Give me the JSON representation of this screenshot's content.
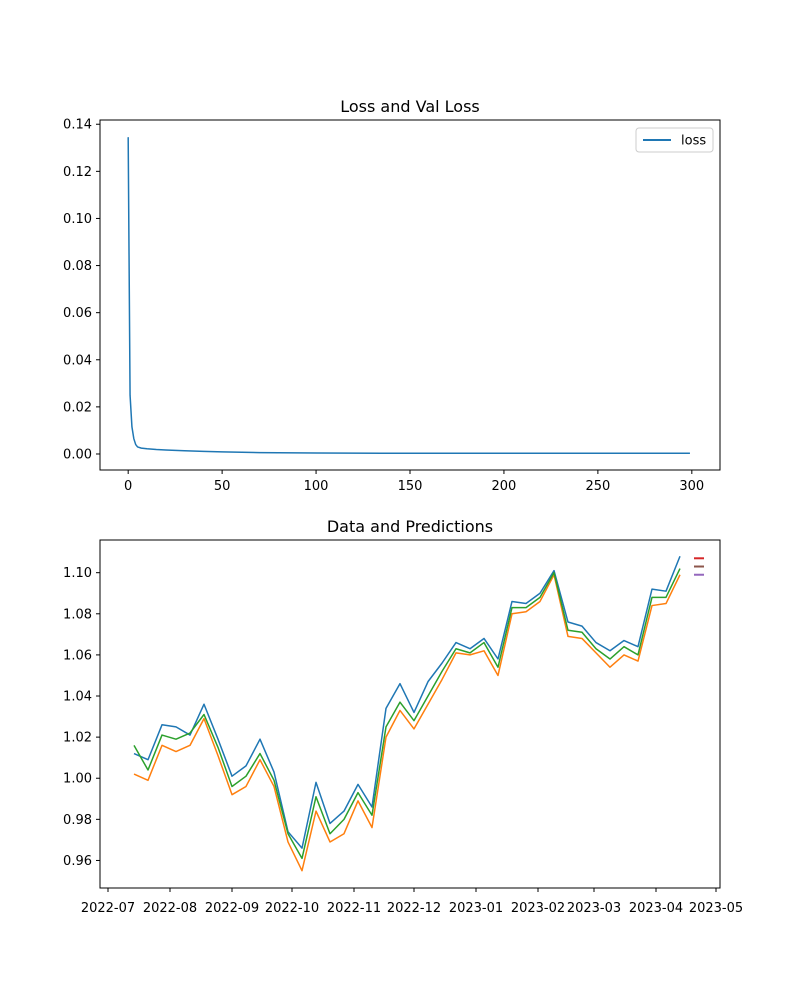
{
  "chart_data": [
    {
      "type": "line",
      "title": "Loss and Val Loss",
      "xlabel": "",
      "ylabel": "",
      "xlim": [
        -15,
        315
      ],
      "ylim": [
        -0.0068,
        0.1418
      ],
      "xticks": [
        0,
        50,
        100,
        150,
        200,
        250,
        300
      ],
      "xtick_labels": [
        "0",
        "50",
        "100",
        "150",
        "200",
        "250",
        "300"
      ],
      "yticks": [
        0.0,
        0.02,
        0.04,
        0.06,
        0.08,
        0.1,
        0.12,
        0.14
      ],
      "ytick_labels": [
        "0.00",
        "0.02",
        "0.04",
        "0.06",
        "0.08",
        "0.10",
        "0.12",
        "0.14"
      ],
      "grid": false,
      "legend": "upper right",
      "series": [
        {
          "name": "loss",
          "color": "#1f77b4",
          "x": [
            0,
            1,
            2,
            3,
            4,
            5,
            7,
            10,
            15,
            20,
            30,
            40,
            50,
            70,
            100,
            150,
            200,
            250,
            299
          ],
          "y": [
            0.1345,
            0.025,
            0.0115,
            0.0065,
            0.004,
            0.003,
            0.0025,
            0.0022,
            0.0019,
            0.0017,
            0.0014,
            0.0011,
            0.0009,
            0.0006,
            0.0004,
            0.0003,
            0.0003,
            0.0003,
            0.0003
          ]
        }
      ]
    },
    {
      "type": "line",
      "title": "Data and Predictions",
      "xlabel": "",
      "ylabel": "",
      "x_is_date": true,
      "xlim": [
        "2022-06-27",
        "2023-05-03"
      ],
      "ylim": [
        0.9466,
        1.1159
      ],
      "xticks": [
        "2022-07-01",
        "2022-08-01",
        "2022-09-01",
        "2022-10-01",
        "2022-11-01",
        "2022-12-01",
        "2023-01-01",
        "2023-02-01",
        "2023-03-01",
        "2023-04-01",
        "2023-05-01"
      ],
      "xtick_labels": [
        "2022-07",
        "2022-08",
        "2022-09",
        "2022-10",
        "2022-11",
        "2022-12",
        "2023-01",
        "2023-02",
        "2023-03",
        "2023-04",
        "2023-05"
      ],
      "yticks": [
        0.96,
        0.98,
        1.0,
        1.02,
        1.04,
        1.06,
        1.08,
        1.1
      ],
      "ytick_labels": [
        "0.96",
        "0.98",
        "1.00",
        "1.02",
        "1.04",
        "1.06",
        "1.08",
        "1.10"
      ],
      "grid": false,
      "x": [
        "2022-07-14",
        "2022-07-21",
        "2022-07-28",
        "2022-08-04",
        "2022-08-11",
        "2022-08-18",
        "2022-08-25",
        "2022-09-01",
        "2022-09-08",
        "2022-09-15",
        "2022-09-22",
        "2022-09-29",
        "2022-10-06",
        "2022-10-13",
        "2022-10-20",
        "2022-10-27",
        "2022-11-03",
        "2022-11-10",
        "2022-11-17",
        "2022-11-24",
        "2022-12-01",
        "2022-12-08",
        "2022-12-15",
        "2022-12-22",
        "2022-12-29",
        "2023-01-05",
        "2023-01-12",
        "2023-01-19",
        "2023-01-26",
        "2023-02-02",
        "2023-02-09",
        "2023-02-16",
        "2023-02-23",
        "2023-03-02",
        "2023-03-09",
        "2023-03-16",
        "2023-03-23",
        "2023-03-30",
        "2023-04-06",
        "2023-04-13"
      ],
      "series": [
        {
          "name": "",
          "color": "#1f77b4",
          "values": [
            1.012,
            1.009,
            1.026,
            1.025,
            1.021,
            1.036,
            1.019,
            1.001,
            1.006,
            1.019,
            1.003,
            0.974,
            0.966,
            0.998,
            0.978,
            0.984,
            0.997,
            0.986,
            1.034,
            1.046,
            1.032,
            1.047,
            1.056,
            1.066,
            1.063,
            1.068,
            1.058,
            1.086,
            1.085,
            1.09,
            1.101,
            1.076,
            1.074,
            1.066,
            1.062,
            1.067,
            1.064,
            1.092,
            1.091,
            1.108
          ]
        },
        {
          "name": "",
          "color": "#ff7f0e",
          "values": [
            1.002,
            0.999,
            1.016,
            1.013,
            1.016,
            1.029,
            1.011,
            0.992,
            0.996,
            1.009,
            0.996,
            0.969,
            0.955,
            0.984,
            0.969,
            0.973,
            0.989,
            0.976,
            1.02,
            1.033,
            1.024,
            1.036,
            1.048,
            1.061,
            1.06,
            1.062,
            1.05,
            1.08,
            1.081,
            1.086,
            1.099,
            1.069,
            1.068,
            1.061,
            1.054,
            1.06,
            1.057,
            1.084,
            1.085,
            1.099
          ]
        },
        {
          "name": "",
          "color": "#2ca02c",
          "values": [
            1.016,
            1.004,
            1.021,
            1.019,
            1.022,
            1.031,
            1.015,
            0.996,
            1.001,
            1.012,
            0.999,
            0.973,
            0.961,
            0.991,
            0.973,
            0.98,
            0.993,
            0.982,
            1.025,
            1.037,
            1.028,
            1.04,
            1.052,
            1.063,
            1.061,
            1.066,
            1.054,
            1.083,
            1.083,
            1.088,
            1.1,
            1.072,
            1.071,
            1.063,
            1.058,
            1.064,
            1.06,
            1.088,
            1.088,
            1.102
          ]
        }
      ],
      "markers": [
        {
          "color": "#d62728",
          "value": 1.107
        },
        {
          "color": "#8c564b",
          "value": 1.103
        },
        {
          "color": "#9467bd",
          "value": 1.099
        }
      ]
    }
  ]
}
